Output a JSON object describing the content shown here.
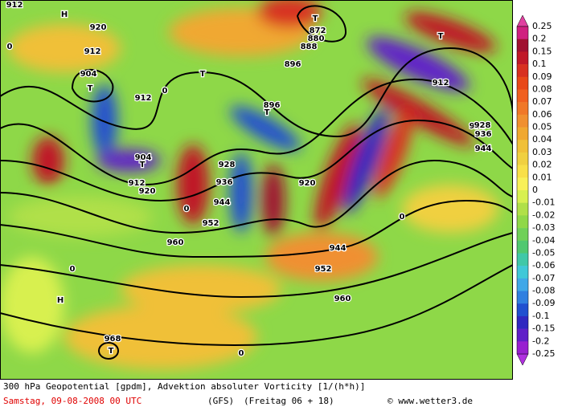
{
  "map": {
    "labels": [
      "912",
      "912",
      "912",
      "912",
      "912",
      "920",
      "920",
      "920",
      "928",
      "928",
      "936",
      "944",
      "952",
      "960",
      "968",
      "904",
      "904",
      "872",
      "880",
      "888",
      "896",
      "896",
      "944",
      "952",
      "960",
      "928",
      "936",
      "944",
      "T",
      "T",
      "T",
      "T",
      "T",
      "T",
      "T",
      "H",
      "H",
      "0",
      "0",
      "0",
      "0",
      "0",
      "0"
    ]
  },
  "colorbar": {
    "labels": [
      "0.25",
      "0.2",
      "0.15",
      "0.1",
      "0.09",
      "0.08",
      "0.07",
      "0.06",
      "0.05",
      "0.04",
      "0.03",
      "0.02",
      "0.01",
      "0",
      "-0.01",
      "-0.02",
      "-0.03",
      "-0.04",
      "-0.05",
      "-0.06",
      "-0.07",
      "-0.08",
      "-0.09",
      "-0.1",
      "-0.15",
      "-0.2",
      "-0.25"
    ],
    "colors": [
      "#d02080",
      "#a01030",
      "#c01828",
      "#d83020",
      "#e84818",
      "#f06020",
      "#f07828",
      "#f09030",
      "#f0a830",
      "#f0c038",
      "#f0d040",
      "#f8e048",
      "#f8f058",
      "#d8f050",
      "#b0e048",
      "#90d848",
      "#70d058",
      "#50c870",
      "#40c8a8",
      "#40c8d8",
      "#40a8e8",
      "#3080e0",
      "#2050d0",
      "#3028c0",
      "#6020c8",
      "#9820d0"
    ],
    "top_color": "#e040a0",
    "bottom_color": "#b030e0"
  },
  "footer": {
    "title": "300 hPa Geopotential [gpdm], Advektion absoluter Vorticity [1/(h*h)]",
    "date": "Samstag, 09-08-2008  00 UTC",
    "model": "(GFS)",
    "run": "(Freitag 06 + 18)",
    "credit": "© www.wetter3.de"
  }
}
